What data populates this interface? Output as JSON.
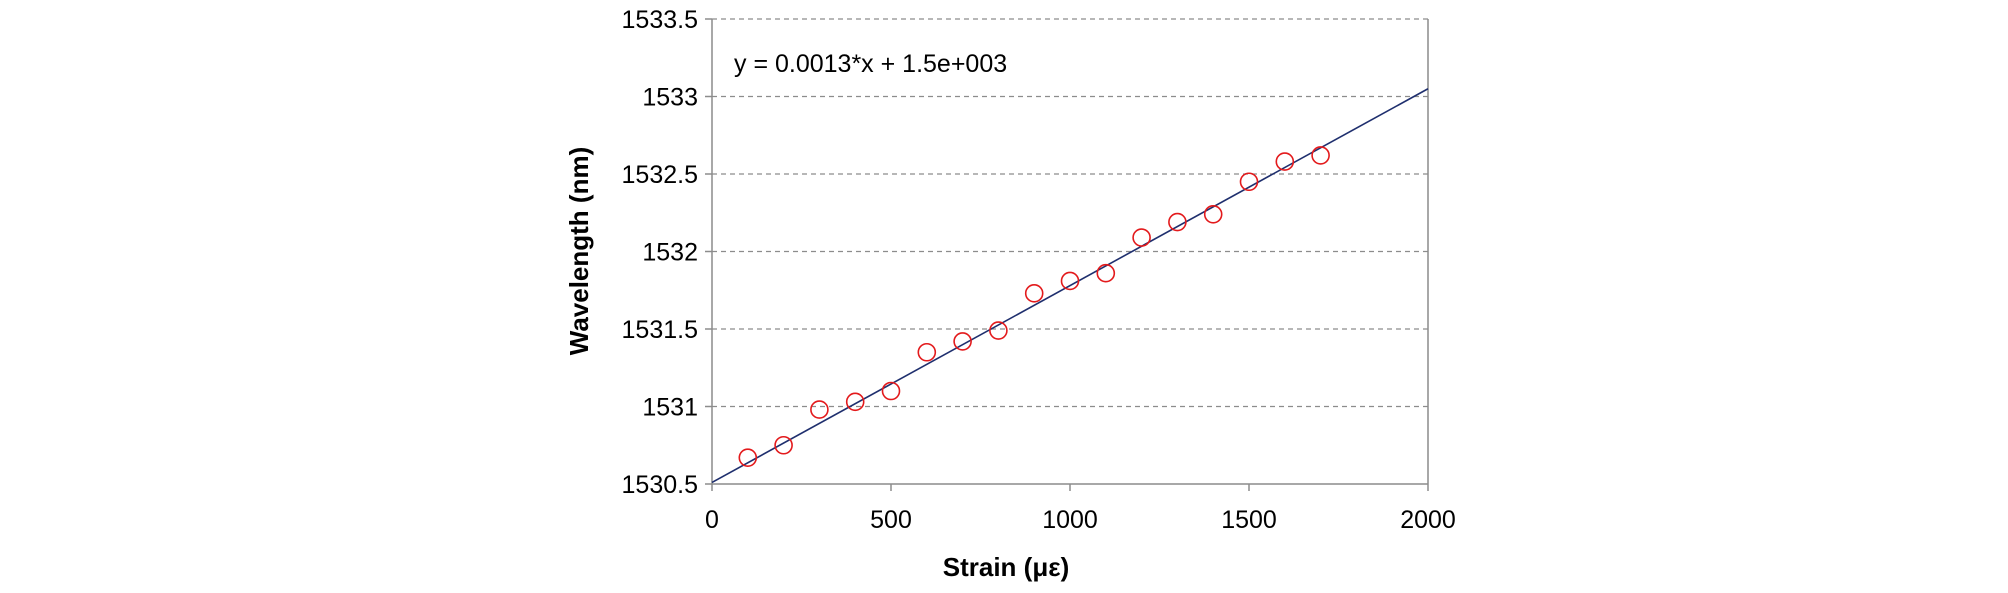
{
  "chart_data": {
    "type": "scatter",
    "title": "",
    "xlabel": "Strain (με)",
    "ylabel": "Wavelength (nm)",
    "xlim": [
      0,
      2000
    ],
    "ylim": [
      1530.5,
      1533.5
    ],
    "xticks": [
      0,
      500,
      1000,
      1500,
      2000
    ],
    "yticks": [
      1530.5,
      1531,
      1531.5,
      1532,
      1532.5,
      1533,
      1533.5
    ],
    "grid": "horizontal dashed",
    "annotation": "y = 0.0013*x + 1.5e+003",
    "series": [
      {
        "marker": "open-circle",
        "color": "#e31a1c",
        "x": [
          100,
          200,
          300,
          400,
          500,
          600,
          700,
          800,
          900,
          1000,
          1100,
          1200,
          1300,
          1400,
          1500,
          1600,
          1700
        ],
        "y": [
          1530.67,
          1530.75,
          1530.98,
          1531.03,
          1531.1,
          1531.35,
          1531.42,
          1531.49,
          1531.73,
          1531.81,
          1531.86,
          1532.09,
          1532.19,
          1532.24,
          1532.45,
          1532.58,
          1532.62
        ]
      }
    ],
    "fit": {
      "color": "#1f2f6e",
      "x": [
        0,
        2000
      ],
      "y": [
        1530.51,
        1533.05
      ]
    }
  }
}
